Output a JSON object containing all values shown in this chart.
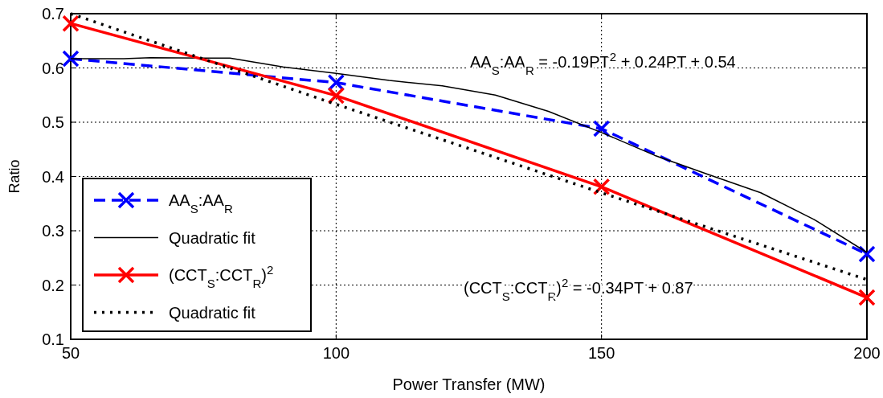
{
  "chart_data": {
    "type": "line",
    "xlabel": "Power Transfer (MW)",
    "ylabel": "Ratio",
    "xlim": [
      50,
      200
    ],
    "xticks": [
      50,
      100,
      150,
      200
    ],
    "ylim": [
      0.1,
      0.7
    ],
    "yticks": [
      0.1,
      0.2,
      0.3,
      0.4,
      0.5,
      0.6,
      0.7
    ],
    "grid": true,
    "legend": "bottom left",
    "series": [
      {
        "name": "AA$_{S}$:AA$_{R}$",
        "color": "#0000ff",
        "x": [
          50,
          100,
          150,
          200
        ],
        "values": [
          0.617,
          0.573,
          0.488,
          0.257
        ],
        "marker": "cross",
        "line_style": "dashed"
      },
      {
        "name": "Quadratic fit",
        "color": "#000000",
        "x": [
          50,
          60,
          65,
          80,
          90,
          100,
          110,
          120,
          130,
          140,
          150,
          160,
          170,
          180,
          190,
          200
        ],
        "values": [
          0.617,
          0.617,
          0.619,
          0.618,
          0.602,
          0.59,
          0.577,
          0.567,
          0.55,
          0.52,
          0.481,
          0.439,
          0.404,
          0.37,
          0.321,
          0.26
        ],
        "marker": "none",
        "line_style": "solid"
      },
      {
        "name": "(CCT$_{S}$:CCT$_{R}$)$^{2}$",
        "color": "#ff0000",
        "x": [
          50,
          100,
          150,
          200
        ],
        "values": [
          0.682,
          0.549,
          0.381,
          0.177
        ],
        "marker": "cross",
        "line_style": "solid"
      },
      {
        "name": "Quadratic fit",
        "color": "#000000",
        "x": [
          50,
          100,
          150,
          200
        ],
        "values": [
          0.7,
          0.533,
          0.37,
          0.21
        ],
        "marker": "none",
        "line_style": "dotted"
      }
    ],
    "annotations": [
      "AA$_{S}$:AA$_{R}$ = -0.19PT$^{2}$ + 0.24PT + 0.54",
      "(CCT$_{S}$:CCT$_{R}$)$^{2}$ = -0.34PT + 0.87"
    ]
  }
}
